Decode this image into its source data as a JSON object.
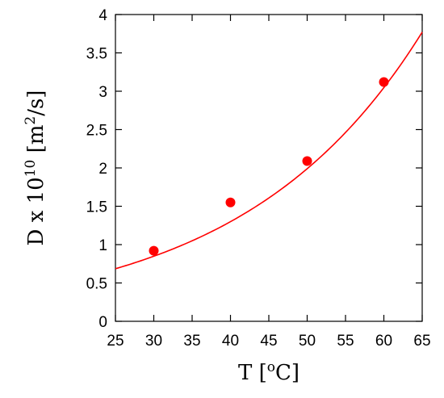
{
  "chart_data": {
    "type": "scatter",
    "title": "",
    "xlabel": {
      "main": "T [",
      "sup": "o",
      "tail": "C]"
    },
    "ylabel": {
      "main": "D x 10",
      "sup": "10",
      "mid": " [m",
      "sup2": "2",
      "tail": "/s]"
    },
    "xlim": [
      25,
      65
    ],
    "ylim": [
      0,
      4
    ],
    "xticks": [
      25,
      30,
      35,
      40,
      45,
      50,
      55,
      60,
      65
    ],
    "yticks": [
      0,
      0.5,
      1,
      1.5,
      2,
      2.5,
      3,
      3.5,
      4
    ],
    "xtick_labels": [
      "25",
      "30",
      "35",
      "40",
      "45",
      "50",
      "55",
      "60",
      "65"
    ],
    "ytick_labels": [
      "0",
      "0.5",
      "1",
      "1.5",
      "2",
      "2.5",
      "3",
      "3.5",
      "4"
    ],
    "grid": false,
    "series": [
      {
        "kind": "points",
        "color": "#ff0000",
        "x": [
          30,
          40,
          50,
          60
        ],
        "y": [
          0.92,
          1.55,
          2.09,
          3.12
        ]
      },
      {
        "kind": "fit-curve",
        "color": "#ff0000",
        "model": "exponential",
        "a": 0.2362,
        "b": 0.04262,
        "x_range": [
          25,
          65
        ]
      }
    ]
  }
}
